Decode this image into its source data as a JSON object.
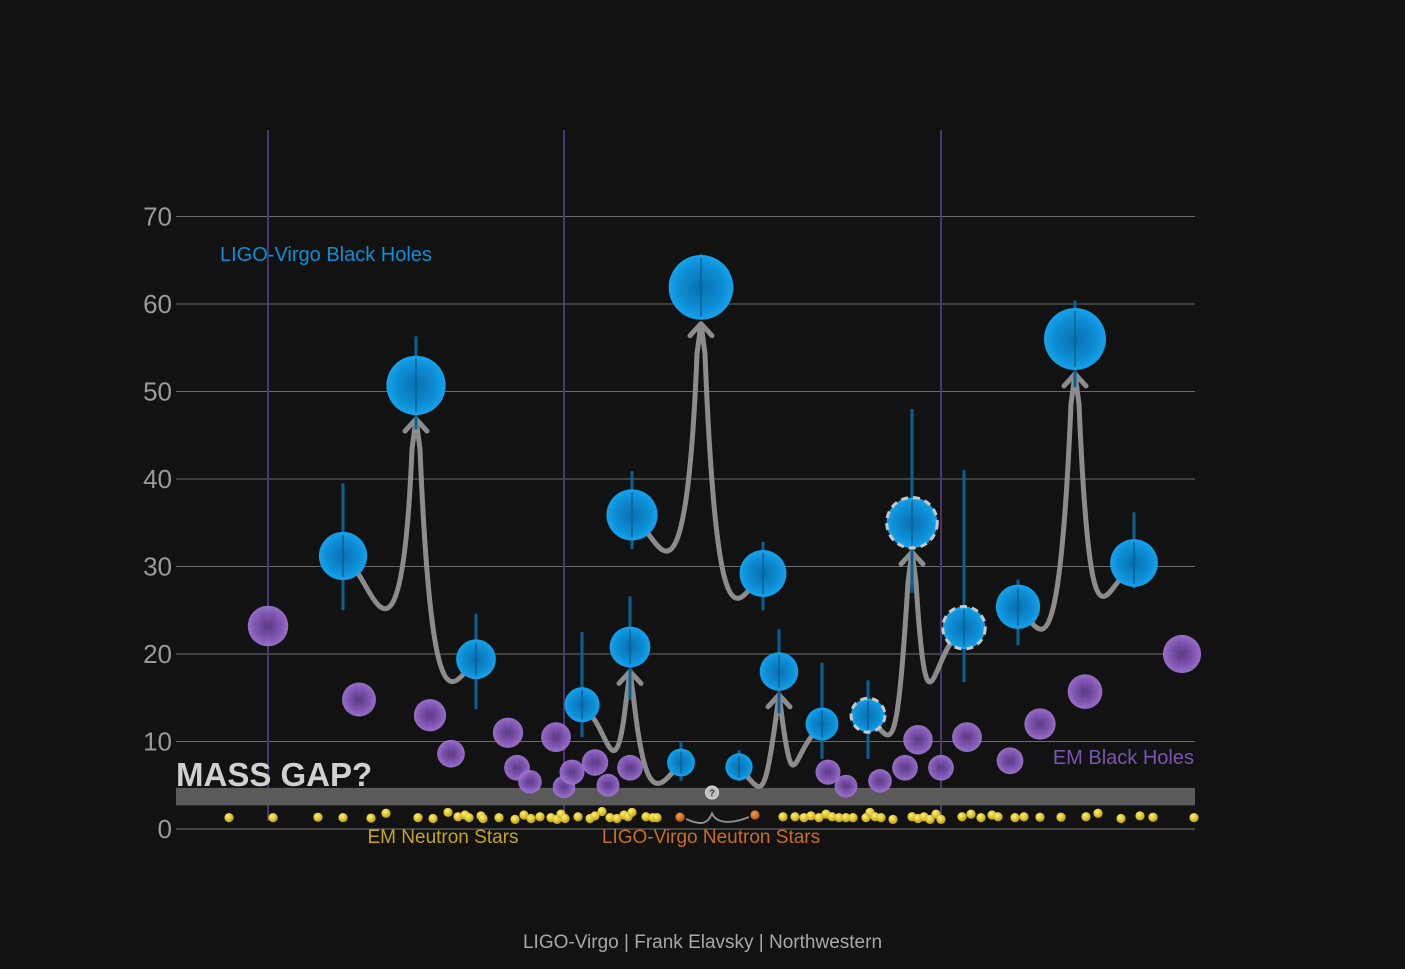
{
  "credit": "LIGO-Virgo | Frank Elavsky | Northwestern",
  "colors": {
    "background": "#121212",
    "ligo_bh": "#0d8fd6",
    "em_bh": "#8a5cc0",
    "em_ns": "#e0c21e",
    "ligo_ns": "#d2741c",
    "merger_arrow": "#8c8c8c",
    "gap_band": "#5a5a5a",
    "mass_gap_text": "#d0d0d0"
  },
  "chart_data": {
    "type": "scatter",
    "ylim": [
      0,
      70
    ],
    "yticks": [
      "0",
      "10",
      "20",
      "30",
      "40",
      "50",
      "60",
      "70"
    ],
    "grid": true,
    "mass_gap": {
      "label": "MASS GAP?",
      "range": [
        2.7,
        4.7
      ]
    },
    "labels": {
      "ligo_bh": "LIGO-Virgo Black Holes",
      "em_bh": "EM Black Holes",
      "em_ns": "EM Neutron Stars",
      "ligo_ns": "LIGO-Virgo Neutron Stars",
      "unknown": "?"
    },
    "em_bh_long_bars": [
      268,
      564,
      941
    ],
    "em_black_holes": [
      {
        "x": 268,
        "m": 23.2
      },
      {
        "x": 359,
        "m": 14.8
      },
      {
        "x": 430,
        "m": 13
      },
      {
        "x": 451,
        "m": 8.6
      },
      {
        "x": 508,
        "m": 11
      },
      {
        "x": 517,
        "m": 7
      },
      {
        "x": 530,
        "m": 5.4
      },
      {
        "x": 556,
        "m": 10.5
      },
      {
        "x": 564,
        "m": 4.8
      },
      {
        "x": 572,
        "m": 6.5
      },
      {
        "x": 595,
        "m": 7.6
      },
      {
        "x": 608,
        "m": 5
      },
      {
        "x": 630,
        "m": 7
      },
      {
        "x": 828,
        "m": 6.5
      },
      {
        "x": 846,
        "m": 4.9
      },
      {
        "x": 880,
        "m": 5.5
      },
      {
        "x": 905,
        "m": 7
      },
      {
        "x": 918,
        "m": 10.2
      },
      {
        "x": 941,
        "m": 7
      },
      {
        "x": 967,
        "m": 10.5
      },
      {
        "x": 1010,
        "m": 7.8
      },
      {
        "x": 1040,
        "m": 12
      },
      {
        "x": 1085,
        "m": 15.7
      },
      {
        "x": 1182,
        "m": 20
      }
    ],
    "ligo_black_holes": [
      {
        "x": 343,
        "m": 31.2,
        "err": [
          25,
          39.5
        ]
      },
      {
        "x": 416,
        "m": 50.7,
        "err": [
          45.7,
          56.3
        ]
      },
      {
        "x": 476,
        "m": 19.4,
        "err": [
          13.7,
          24.6
        ]
      },
      {
        "x": 582,
        "m": 14.2,
        "err": [
          10.5,
          22.5
        ]
      },
      {
        "x": 630,
        "m": 20.8,
        "err": [
          14.8,
          26.6
        ]
      },
      {
        "x": 632,
        "m": 35.9,
        "err": [
          32,
          40.9
        ]
      },
      {
        "x": 701,
        "m": 61.9,
        "err": [
          58.5,
          65.7
        ]
      },
      {
        "x": 681,
        "m": 7.6,
        "err": [
          5.5,
          10
        ]
      },
      {
        "x": 739,
        "m": 7.1,
        "err": [
          5.5,
          9
        ]
      },
      {
        "x": 763,
        "m": 29.2,
        "err": [
          25,
          32.8
        ]
      },
      {
        "x": 779,
        "m": 18,
        "err": [
          13.2,
          22.8
        ]
      },
      {
        "x": 822,
        "m": 12,
        "err": [
          8,
          19
        ]
      },
      {
        "x": 868,
        "m": 13,
        "err": [
          8,
          17
        ],
        "dashed": true
      },
      {
        "x": 912,
        "m": 35,
        "err": [
          27,
          48
        ],
        "dashed": true
      },
      {
        "x": 964,
        "m": 23,
        "err": [
          16.8,
          41
        ],
        "dashed": true
      },
      {
        "x": 1018,
        "m": 25.4,
        "err": [
          21,
          28.5
        ]
      },
      {
        "x": 1075,
        "m": 56,
        "err": [
          50.5,
          60.4
        ]
      },
      {
        "x": 1134,
        "m": 30.4,
        "err": [
          27.5,
          36.2
        ]
      }
    ],
    "mergers": [
      {
        "a": [
          343,
          31.2
        ],
        "b": [
          476,
          19.4
        ],
        "c": [
          416,
          50.7
        ]
      },
      {
        "a": [
          582,
          14.2
        ],
        "b": [
          681,
          7.6
        ],
        "c": [
          630,
          20.8
        ]
      },
      {
        "a": [
          632,
          35.9
        ],
        "b": [
          763,
          29.2
        ],
        "c": [
          701,
          61.9
        ]
      },
      {
        "a": [
          739,
          7.1
        ],
        "b": [
          822,
          12
        ],
        "c": [
          779,
          18
        ]
      },
      {
        "a": [
          868,
          13
        ],
        "b": [
          964,
          23
        ],
        "c": [
          912,
          35
        ]
      },
      {
        "a": [
          1018,
          25.4
        ],
        "b": [
          1134,
          30.4
        ],
        "c": [
          1075,
          56
        ]
      }
    ],
    "neutron_stars_em": [
      {
        "x": 229,
        "m": 1.3
      },
      {
        "x": 273,
        "m": 1.3
      },
      {
        "x": 318,
        "m": 1.35
      },
      {
        "x": 343,
        "m": 1.3
      },
      {
        "x": 371,
        "m": 1.25
      },
      {
        "x": 386,
        "m": 1.8
      },
      {
        "x": 418,
        "m": 1.3
      },
      {
        "x": 433,
        "m": 1.2
      },
      {
        "x": 448,
        "m": 1.9
      },
      {
        "x": 458,
        "m": 1.4
      },
      {
        "x": 465,
        "m": 1.6
      },
      {
        "x": 469,
        "m": 1.3
      },
      {
        "x": 481,
        "m": 1.5
      },
      {
        "x": 483,
        "m": 1.2
      },
      {
        "x": 499,
        "m": 1.3
      },
      {
        "x": 515,
        "m": 1.1
      },
      {
        "x": 524,
        "m": 1.6
      },
      {
        "x": 531,
        "m": 1.2
      },
      {
        "x": 540,
        "m": 1.4
      },
      {
        "x": 551,
        "m": 1.3
      },
      {
        "x": 557,
        "m": 1.1
      },
      {
        "x": 561,
        "m": 1.7
      },
      {
        "x": 565,
        "m": 1.2
      },
      {
        "x": 578,
        "m": 1.4
      },
      {
        "x": 590,
        "m": 1.2
      },
      {
        "x": 595,
        "m": 1.5
      },
      {
        "x": 602,
        "m": 2.0
      },
      {
        "x": 610,
        "m": 1.3
      },
      {
        "x": 617,
        "m": 1.2
      },
      {
        "x": 624,
        "m": 1.6
      },
      {
        "x": 628,
        "m": 1.4
      },
      {
        "x": 632,
        "m": 1.9
      },
      {
        "x": 646,
        "m": 1.4
      },
      {
        "x": 653,
        "m": 1.3
      },
      {
        "x": 657,
        "m": 1.3
      },
      {
        "x": 783,
        "m": 1.4
      },
      {
        "x": 795,
        "m": 1.4
      },
      {
        "x": 804,
        "m": 1.3
      },
      {
        "x": 811,
        "m": 1.5
      },
      {
        "x": 819,
        "m": 1.3
      },
      {
        "x": 826,
        "m": 1.7
      },
      {
        "x": 832,
        "m": 1.4
      },
      {
        "x": 839,
        "m": 1.3
      },
      {
        "x": 846,
        "m": 1.3
      },
      {
        "x": 853,
        "m": 1.3
      },
      {
        "x": 866,
        "m": 1.3
      },
      {
        "x": 870,
        "m": 1.9
      },
      {
        "x": 875,
        "m": 1.4
      },
      {
        "x": 881,
        "m": 1.3
      },
      {
        "x": 893,
        "m": 1.1
      },
      {
        "x": 912,
        "m": 1.4
      },
      {
        "x": 918,
        "m": 1.2
      },
      {
        "x": 924,
        "m": 1.4
      },
      {
        "x": 930,
        "m": 1.1
      },
      {
        "x": 936,
        "m": 1.7
      },
      {
        "x": 941,
        "m": 1.1
      },
      {
        "x": 962,
        "m": 1.4
      },
      {
        "x": 971,
        "m": 1.7
      },
      {
        "x": 981,
        "m": 1.3
      },
      {
        "x": 992,
        "m": 1.6
      },
      {
        "x": 998,
        "m": 1.4
      },
      {
        "x": 1015,
        "m": 1.3
      },
      {
        "x": 1024,
        "m": 1.4
      },
      {
        "x": 1040,
        "m": 1.35
      },
      {
        "x": 1061,
        "m": 1.35
      },
      {
        "x": 1086,
        "m": 1.4
      },
      {
        "x": 1098,
        "m": 1.8
      },
      {
        "x": 1121,
        "m": 1.2
      },
      {
        "x": 1140,
        "m": 1.5
      },
      {
        "x": 1153,
        "m": 1.35
      },
      {
        "x": 1194,
        "m": 1.3
      }
    ],
    "neutron_stars_ligo": [
      {
        "x": 680,
        "m": 1.36
      },
      {
        "x": 755,
        "m": 1.6
      }
    ],
    "ns_merger_product": {
      "x": 712,
      "m": 2.8
    }
  }
}
